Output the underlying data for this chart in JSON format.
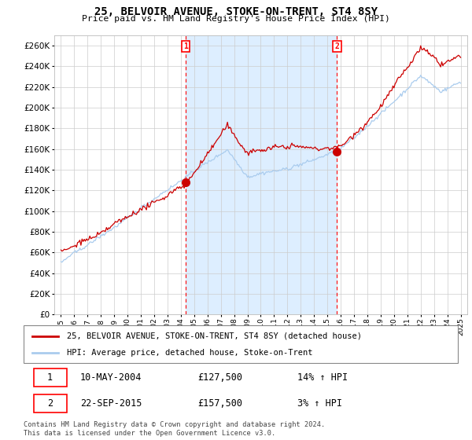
{
  "title": "25, BELVOIR AVENUE, STOKE-ON-TRENT, ST4 8SY",
  "subtitle": "Price paid vs. HM Land Registry's House Price Index (HPI)",
  "legend_line1": "25, BELVOIR AVENUE, STOKE-ON-TRENT, ST4 8SY (detached house)",
  "legend_line2": "HPI: Average price, detached house, Stoke-on-Trent",
  "transaction1_date": "10-MAY-2004",
  "transaction1_price": "£127,500",
  "transaction1_hpi": "14% ↑ HPI",
  "transaction1_x": 2004.36,
  "transaction1_y": 127500,
  "transaction2_date": "22-SEP-2015",
  "transaction2_price": "£157,500",
  "transaction2_hpi": "3% ↑ HPI",
  "transaction2_x": 2015.72,
  "transaction2_y": 157500,
  "xlim": [
    1994.5,
    2025.5
  ],
  "ylim": [
    0,
    270000
  ],
  "background_color": "#ffffff",
  "grid_color": "#cccccc",
  "red_color": "#cc0000",
  "blue_color": "#aaccee",
  "shade_color": "#ddeeff",
  "footer": "Contains HM Land Registry data © Crown copyright and database right 2024.\nThis data is licensed under the Open Government Licence v3.0."
}
